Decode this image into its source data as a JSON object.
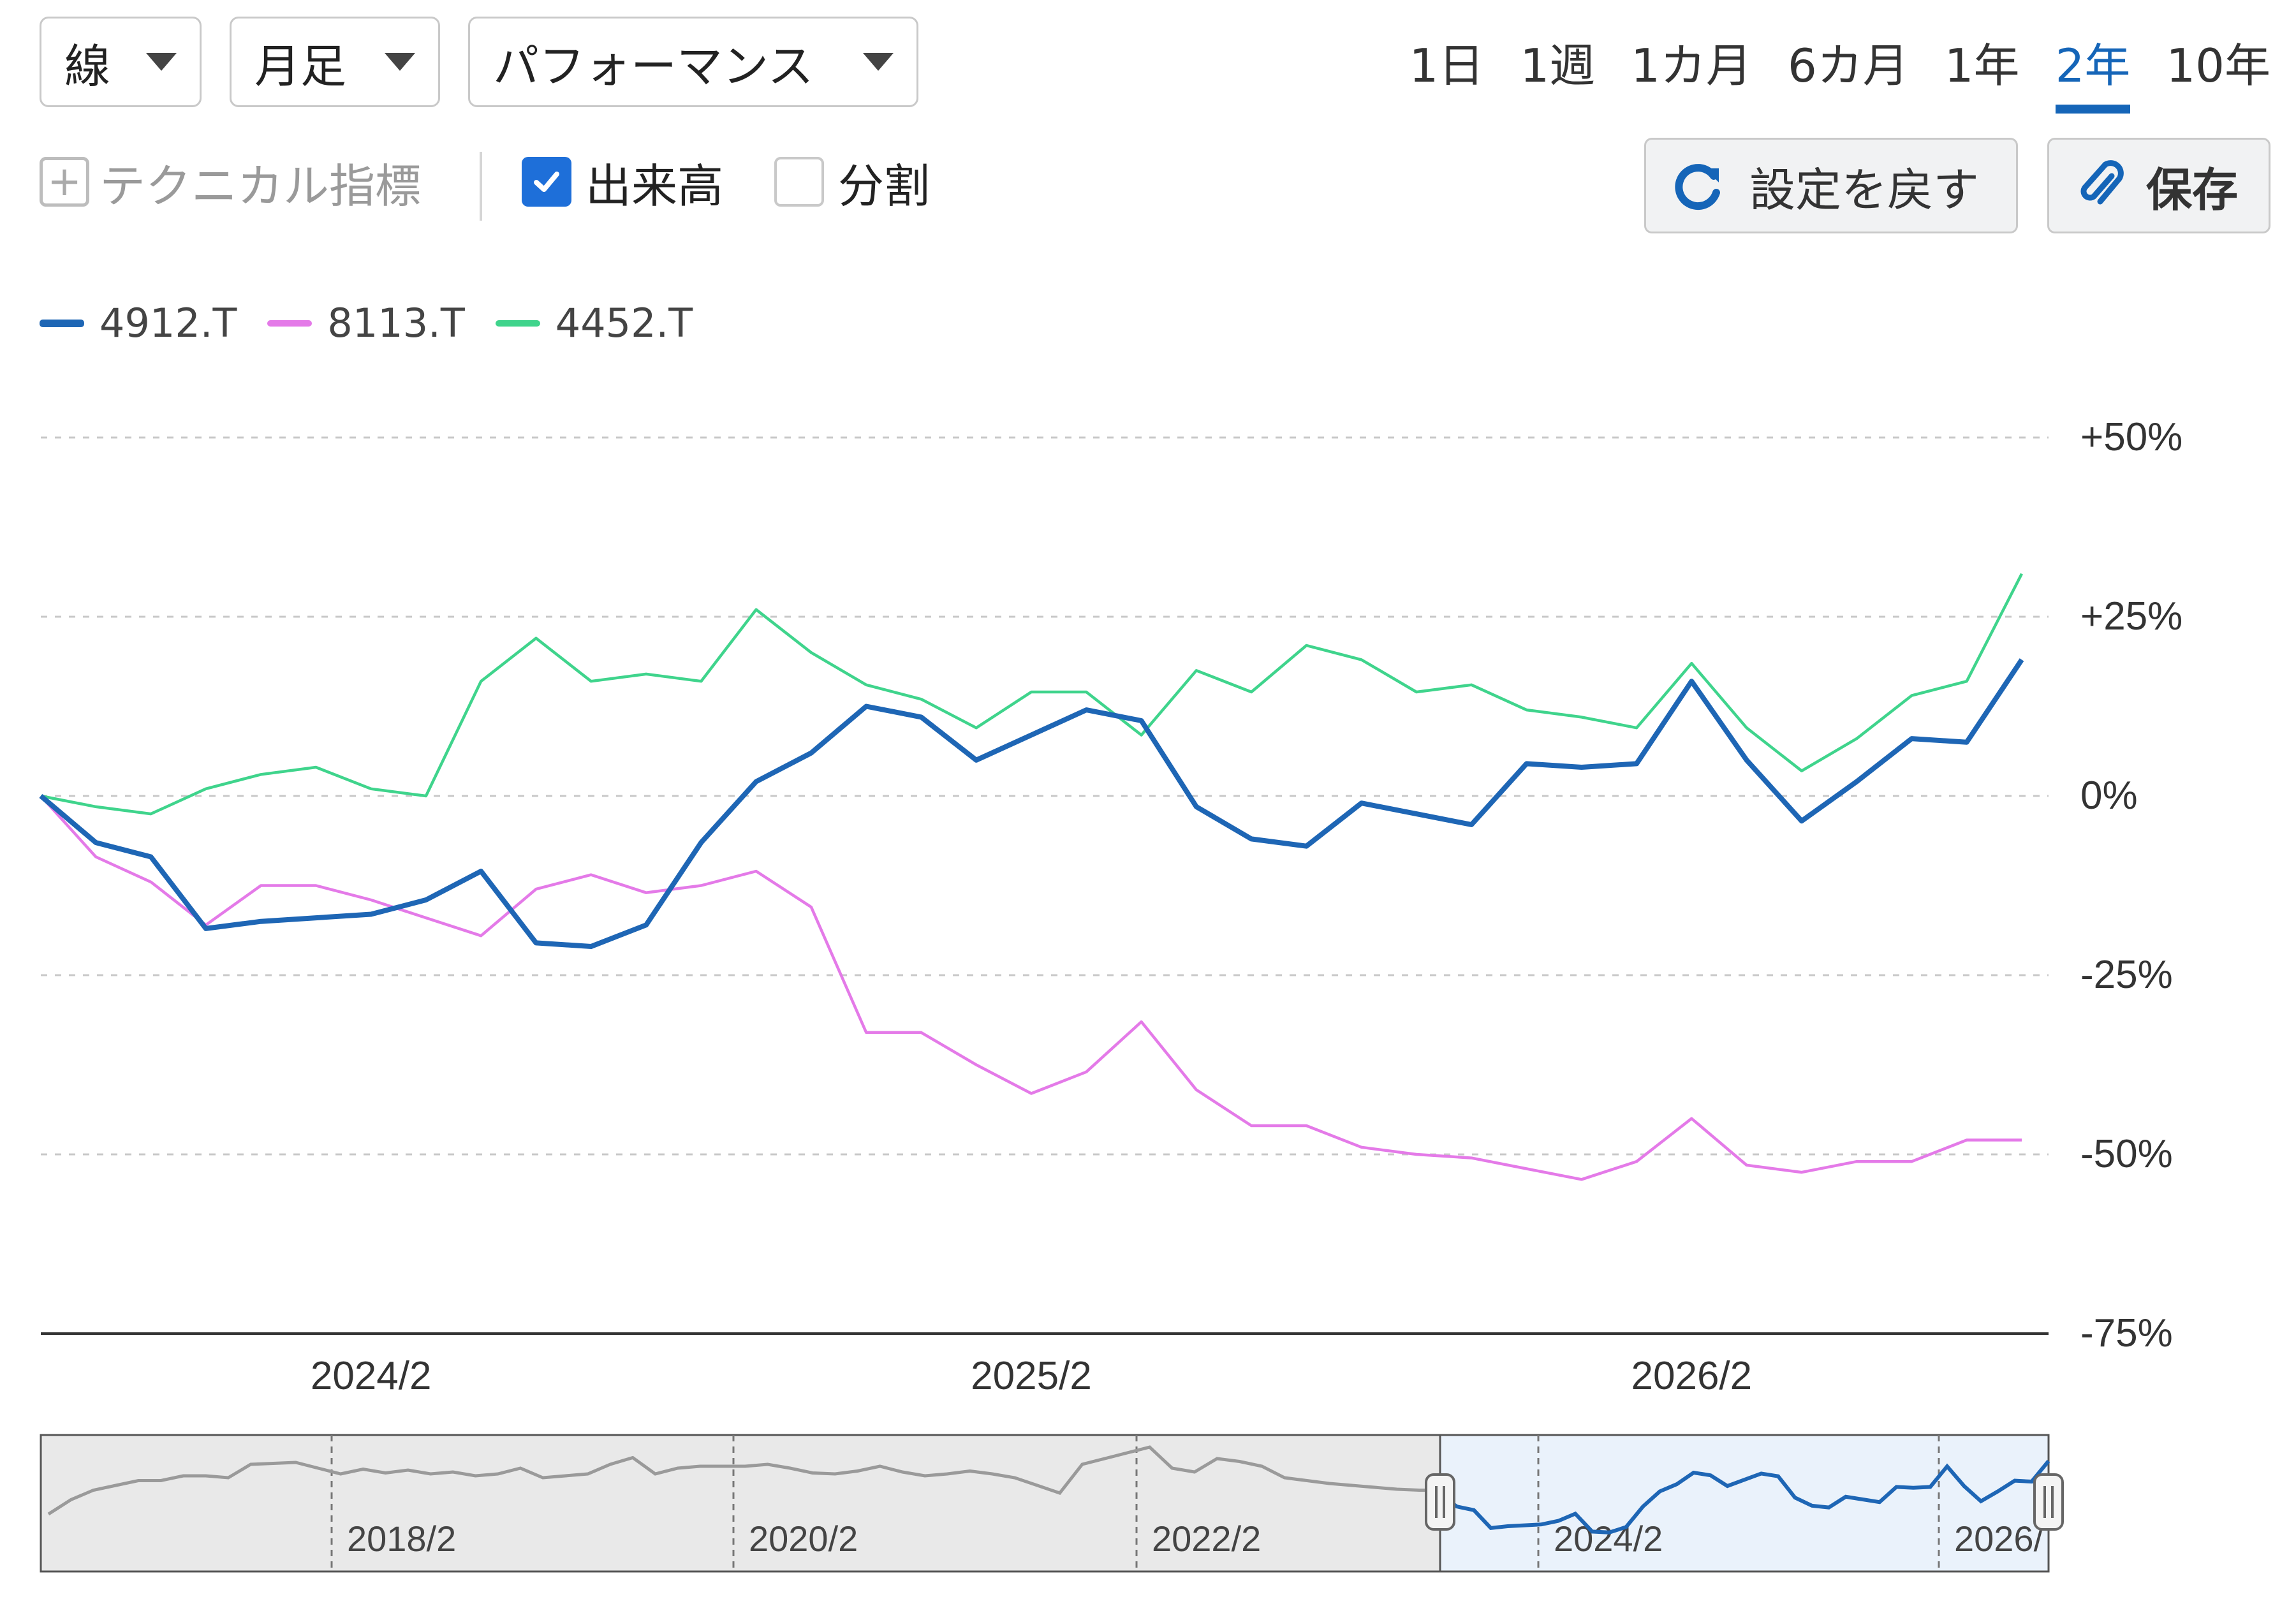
{
  "toolbar": {
    "chart_type": "線",
    "interval": "月足",
    "mode": "パフォーマンス",
    "ranges": [
      "1日",
      "1週",
      "1カ月",
      "6カ月",
      "1年",
      "2年",
      "10年"
    ],
    "active_range": "2年",
    "technical_label": "テクニカル指標",
    "volume_label": "出来高",
    "volume_checked": true,
    "split_label": "分割",
    "split_checked": false,
    "reset_label": "設定を戻す",
    "save_label": "保存"
  },
  "colors": {
    "accent": "#1565b8",
    "series_4912": "#1e66b5",
    "series_8113": "#e47ae8",
    "series_4452": "#3fd48c",
    "navigator_line": "#9a9a9a",
    "grid": "#c8c8c8"
  },
  "chart_data": {
    "type": "line",
    "ylim": [
      -75,
      50
    ],
    "yticks": [
      "+50%",
      "+25%",
      "0%",
      "-25%",
      "-50%",
      "-75%"
    ],
    "ytick_values": [
      50,
      25,
      0,
      -25,
      -50,
      -75
    ],
    "xtick_labels": [
      "2024/2",
      "2025/2",
      "2026/2"
    ],
    "xtick_index": [
      6,
      18,
      30
    ],
    "grid": true,
    "legend_position": "top-left",
    "series": [
      {
        "name": "4912.T",
        "color_key": "series_4912",
        "values": [
          0,
          -6.5,
          -8.5,
          -18.5,
          -17.5,
          -17,
          -16.5,
          -14.5,
          -10.5,
          -20.5,
          -21,
          -18,
          -6.5,
          2,
          6,
          12.5,
          11,
          5,
          8.5,
          12,
          10.5,
          -1.5,
          -6,
          -7,
          -1,
          -2.5,
          -4,
          4.5,
          4,
          4.5,
          16,
          5,
          -3.5,
          2,
          8,
          7.5,
          19
        ]
      },
      {
        "name": "8113.T",
        "color_key": "series_8113",
        "values": [
          0,
          -8.5,
          -12,
          -18,
          -12.5,
          -12.5,
          -14.5,
          -17,
          -19.5,
          -13,
          -11,
          -13.5,
          -12.5,
          -10.5,
          -15.5,
          -33,
          -33,
          -37.5,
          -41.5,
          -38.5,
          -31.5,
          -41,
          -46,
          -46,
          -49,
          -50,
          -50.5,
          -52,
          -53.5,
          -51,
          -45,
          -51.5,
          -52.5,
          -51,
          -51,
          -48,
          -48
        ]
      },
      {
        "name": "4452.T",
        "color_key": "series_4452",
        "values": [
          0,
          -1.5,
          -2.5,
          1,
          3,
          4,
          1,
          0,
          16,
          22,
          16,
          17,
          16,
          26,
          20,
          15.5,
          13.5,
          9.5,
          14.5,
          14.5,
          8.5,
          17.5,
          14.5,
          21,
          19,
          14.5,
          15.5,
          12,
          11,
          9.5,
          18.5,
          9.5,
          3.5,
          8,
          14,
          16,
          31
        ]
      }
    ]
  },
  "navigator": {
    "labels": [
      "2018/2",
      "2020/2",
      "2022/2",
      "2024/2",
      "2026/"
    ],
    "values": [
      0.2,
      0.35,
      0.45,
      0.5,
      0.55,
      0.55,
      0.6,
      0.6,
      0.58,
      0.72,
      0.73,
      0.74,
      0.68,
      0.62,
      0.67,
      0.63,
      0.66,
      0.62,
      0.64,
      0.6,
      0.62,
      0.68,
      0.58,
      0.6,
      0.62,
      0.72,
      0.79,
      0.62,
      0.68,
      0.7,
      0.7,
      0.7,
      0.72,
      0.68,
      0.63,
      0.62,
      0.65,
      0.7,
      0.64,
      0.6,
      0.62,
      0.65,
      0.62,
      0.58,
      0.5,
      0.42,
      0.72,
      0.78,
      0.84,
      0.9,
      0.68,
      0.64,
      0.78,
      0.75,
      0.7,
      0.58,
      0.55,
      0.52,
      0.5,
      0.48,
      0.46,
      0.45,
      0.45,
      0.44,
      0.43,
      0.42,
      0.4,
      0.4,
      0.38,
      0.34,
      0.28,
      0.24,
      0.22,
      0.22,
      0.23,
      0.2,
      0.2,
      0.19,
      0.18,
      0.2,
      0.18,
      0.17,
      0.16,
      0.18,
      0.16,
      0.15,
      0.16,
      0.14,
      0.15,
      0.17
    ]
  }
}
